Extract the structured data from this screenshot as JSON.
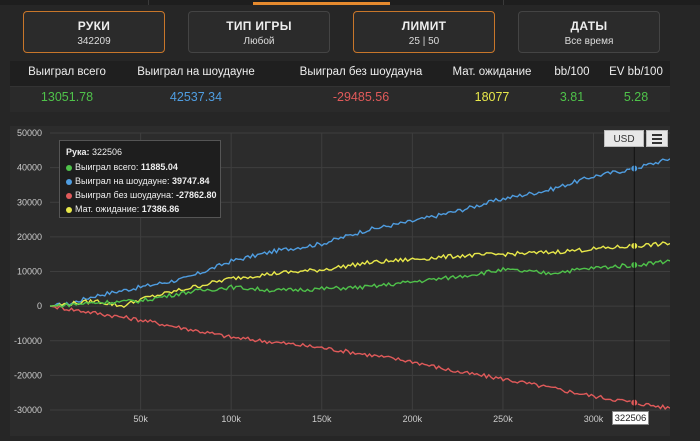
{
  "filters": [
    {
      "title": "РУКИ",
      "value": "342209"
    },
    {
      "title": "ТИП ИГРЫ",
      "value": "Любой"
    },
    {
      "title": "ЛИМИТ",
      "value": "25 | 50"
    },
    {
      "title": "ДАТЫ",
      "value": "Все время"
    }
  ],
  "stats": {
    "headers": [
      "Выиграл всего",
      "Выиграл на шоудауне",
      "Выиграл без шоудауна",
      "Мат. ожидание",
      "bb/100",
      "EV bb/100"
    ],
    "values": [
      "13051.78",
      "42537.34",
      "-29485.56",
      "18077",
      "3.81",
      "5.28"
    ],
    "colors": [
      "#4fc24a",
      "#4f9de0",
      "#e05a5a",
      "#e8e84a",
      "#4fc24a",
      "#4fc24a"
    ]
  },
  "toolbar": {
    "currency": "USD",
    "menu_icon": "hamburger-icon"
  },
  "tooltip": {
    "title_label": "Рука:",
    "title_value": "322506",
    "rows": [
      {
        "label": "Выиграл всего:",
        "value": "11885.04",
        "color": "#4fc24a"
      },
      {
        "label": "Выиграл на шоудауне:",
        "value": "39747.84",
        "color": "#4f9de0"
      },
      {
        "label": "Выиграл без шоудауна:",
        "value": "-27862.80",
        "color": "#e05a5a"
      },
      {
        "label": "Мат. ожидание:",
        "value": "17386.86",
        "color": "#e8e84a"
      }
    ]
  },
  "crosshair_label": "322506",
  "chart_data": {
    "type": "line",
    "xlim": [
      0,
      342209
    ],
    "ylim": [
      -30000,
      50000
    ],
    "x_ticks": [
      50000,
      100000,
      150000,
      200000,
      250000,
      300000
    ],
    "x_tick_labels": [
      "50k",
      "100k",
      "150k",
      "200k",
      "250k",
      "300k"
    ],
    "y_ticks": [
      50000,
      40000,
      30000,
      20000,
      10000,
      0,
      -10000,
      -20000,
      -30000
    ],
    "y_tick_labels": [
      "50000",
      "40000",
      "30000",
      "20000",
      "10000",
      "0",
      "-10000",
      "-20000",
      "-30000"
    ],
    "grid": true,
    "legend": "none",
    "crosshair_x": 322506,
    "series": [
      {
        "name": "Выиграл на шоудауне",
        "color": "#4f9de0",
        "x": [
          0,
          10000,
          25000,
          50000,
          75000,
          100000,
          125000,
          150000,
          175000,
          200000,
          225000,
          250000,
          275000,
          300000,
          322506,
          342209
        ],
        "y": [
          0,
          600,
          3000,
          5500,
          8000,
          13000,
          16000,
          18000,
          22000,
          24500,
          27500,
          31000,
          33500,
          37500,
          39747.84,
          42537.34
        ]
      },
      {
        "name": "Выиграл без шоудауна",
        "color": "#e05a5a",
        "x": [
          0,
          25000,
          50000,
          75000,
          100000,
          125000,
          150000,
          175000,
          200000,
          225000,
          250000,
          275000,
          300000,
          322506,
          342209
        ],
        "y": [
          0,
          -2000,
          -4000,
          -6500,
          -9000,
          -10500,
          -12000,
          -14000,
          -16000,
          -19000,
          -21000,
          -23500,
          -26000,
          -27862.8,
          -29485.56
        ]
      },
      {
        "name": "Мат. ожидание",
        "color": "#e8e84a",
        "x": [
          0,
          25000,
          40000,
          50000,
          75000,
          100000,
          125000,
          150000,
          175000,
          200000,
          225000,
          250000,
          275000,
          300000,
          322506,
          342209
        ],
        "y": [
          0,
          1500,
          0,
          2000,
          5000,
          8000,
          9500,
          10500,
          12500,
          13500,
          14500,
          15000,
          15500,
          16500,
          17386.86,
          18077
        ]
      },
      {
        "name": "Выиграл всего",
        "color": "#4fc24a",
        "x": [
          0,
          25000,
          50000,
          75000,
          100000,
          125000,
          150000,
          175000,
          200000,
          225000,
          250000,
          275000,
          300000,
          322506,
          342209
        ],
        "y": [
          0,
          1000,
          1500,
          4000,
          5500,
          4500,
          5000,
          5500,
          7000,
          8500,
          10500,
          9500,
          11000,
          11885.04,
          13051.78
        ]
      }
    ]
  }
}
